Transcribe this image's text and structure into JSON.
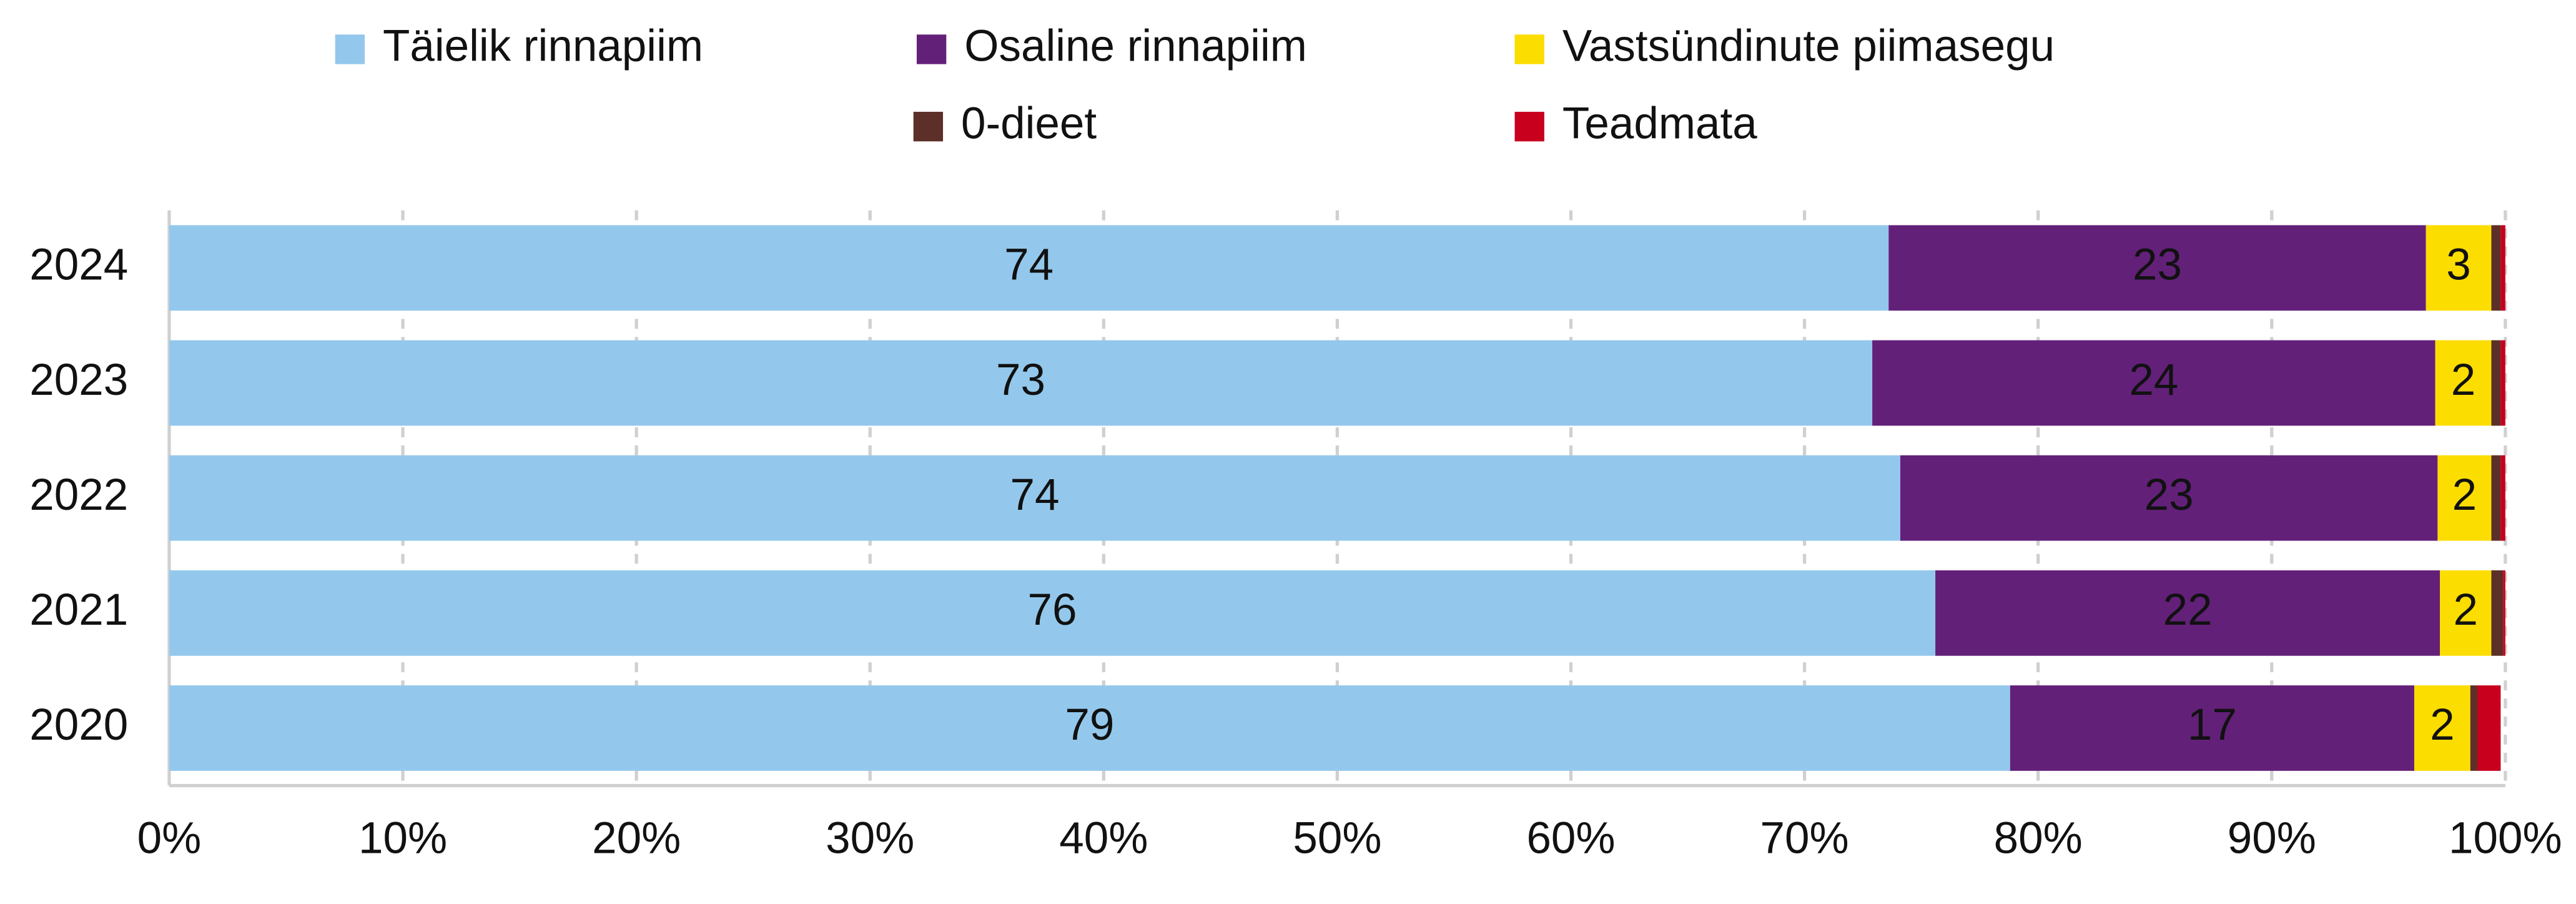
{
  "chart_data": {
    "type": "stacked-bar-horizontal",
    "categories": [
      "2024",
      "2023",
      "2022",
      "2021",
      "2020"
    ],
    "series": [
      {
        "name": "Täielik rinnapiim",
        "color": "#93c8ec",
        "label_color": "#111111",
        "values": [
          73.6,
          72.9,
          74.1,
          75.6,
          78.8
        ],
        "value_labels": [
          "74",
          "73",
          "74",
          "76",
          "79"
        ]
      },
      {
        "name": "Osaline rinnapiim",
        "color": "#632079",
        "label_color": "#ffffff",
        "values": [
          23.0,
          24.1,
          23.0,
          21.6,
          17.3
        ],
        "value_labels": [
          "23",
          "24",
          "23",
          "22",
          "17"
        ]
      },
      {
        "name": "Vastsündinute piimasegu",
        "color": "#fcdd00",
        "label_color": "#111111",
        "values": [
          2.8,
          2.4,
          2.3,
          2.2,
          2.4
        ],
        "value_labels": [
          "3",
          "2",
          "2",
          "2",
          "2"
        ]
      },
      {
        "name": "0-dieet",
        "color": "#5c3028",
        "values": [
          0.4,
          0.4,
          0.4,
          0.5,
          0.3
        ]
      },
      {
        "name": "Teadmata",
        "color": "#c8001e",
        "values": [
          0.2,
          0.2,
          0.2,
          0.1,
          1.0
        ]
      }
    ],
    "xlim": [
      0,
      100
    ],
    "xticks": [
      {
        "value": 0,
        "label": "0%"
      },
      {
        "value": 10,
        "label": "10%"
      },
      {
        "value": 20,
        "label": "20%"
      },
      {
        "value": 30,
        "label": "30%"
      },
      {
        "value": 40,
        "label": "40%"
      },
      {
        "value": 50,
        "label": "50%"
      },
      {
        "value": 60,
        "label": "60%"
      },
      {
        "value": 70,
        "label": "70%"
      },
      {
        "value": 80,
        "label": "80%"
      },
      {
        "value": 90,
        "label": "90%"
      },
      {
        "value": 100,
        "label": "100%"
      }
    ],
    "grid": true,
    "legend": "top"
  }
}
